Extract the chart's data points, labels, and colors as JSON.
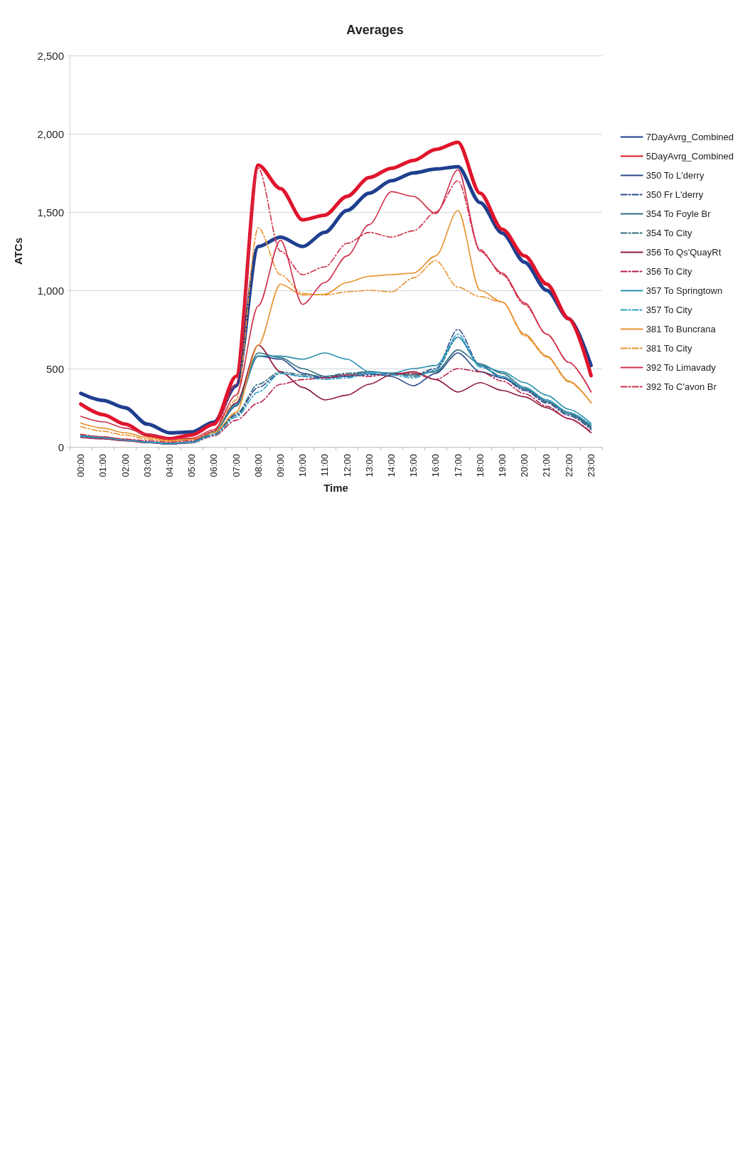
{
  "chart_data": {
    "type": "line",
    "title": "Averages",
    "xlabel": "Time",
    "ylabel": "ATCs",
    "categories": [
      "00:00",
      "01:00",
      "02:00",
      "03:00",
      "04:00",
      "05:00",
      "06:00",
      "07:00",
      "08:00",
      "09:00",
      "10:00",
      "11:00",
      "12:00",
      "13:00",
      "14:00",
      "15:00",
      "16:00",
      "17:00",
      "18:00",
      "19:00",
      "20:00",
      "21:00",
      "22:00",
      "23:00"
    ],
    "ylim": [
      0,
      2500
    ],
    "yticks": [
      {
        "value": 0,
        "label": "0"
      },
      {
        "value": 500,
        "label": "500"
      },
      {
        "value": 1000,
        "label": "1,000"
      },
      {
        "value": 1500,
        "label": "1,500"
      },
      {
        "value": 2000,
        "label": "2,000"
      },
      {
        "value": 2500,
        "label": "2,500"
      }
    ],
    "grid": "y",
    "legend": "right",
    "marker": "none",
    "series": [
      {
        "name": "7DayAvrg_Combined",
        "color": "#1f3f8f",
        "values": [
          342,
          297,
          250,
          145,
          90,
          95,
          158,
          390,
          1280,
          1340,
          1280,
          1370,
          1510,
          1620,
          1700,
          1750,
          1775,
          1790,
          1560,
          1365,
          1180,
          1000,
          818,
          520
        ]
      },
      {
        "name": "5DayAvrg_Combined",
        "color": "#e0142c",
        "values": [
          273,
          206,
          145,
          76,
          52,
          76,
          145,
          450,
          1800,
          1650,
          1450,
          1480,
          1600,
          1720,
          1780,
          1830,
          1900,
          1945,
          1620,
          1390,
          1220,
          1040,
          818,
          455
        ]
      },
      {
        "name": "350 To L'derry",
        "color": "#2b4a8c",
        "values": [
          75,
          62,
          47,
          32,
          22,
          32,
          95,
          260,
          580,
          560,
          470,
          440,
          450,
          470,
          450,
          390,
          470,
          600,
          480,
          440,
          370,
          290,
          210,
          120
        ]
      },
      {
        "name": "350 Fr L'derry",
        "color": "#2b4a8c",
        "line_style": "dashed",
        "values": [
          70,
          58,
          44,
          30,
          20,
          28,
          80,
          200,
          380,
          470,
          450,
          440,
          450,
          460,
          470,
          460,
          500,
          750,
          520,
          440,
          360,
          280,
          200,
          110
        ]
      },
      {
        "name": "354 To Foyle Br",
        "color": "#2f6f7e",
        "values": [
          68,
          58,
          43,
          29,
          20,
          30,
          95,
          270,
          600,
          570,
          500,
          450,
          460,
          480,
          470,
          460,
          480,
          620,
          530,
          470,
          380,
          300,
          220,
          130
        ]
      },
      {
        "name": "354 To City",
        "color": "#2f6f7e",
        "line_style": "dashed",
        "values": [
          65,
          55,
          42,
          28,
          18,
          28,
          80,
          210,
          400,
          480,
          460,
          450,
          470,
          480,
          470,
          450,
          490,
          700,
          520,
          450,
          370,
          290,
          210,
          120
        ]
      },
      {
        "name": "356 To Qs'QuayRt",
        "color": "#8b1a3a",
        "values": [
          62,
          52,
          40,
          27,
          18,
          28,
          95,
          280,
          650,
          480,
          380,
          300,
          330,
          400,
          460,
          480,
          430,
          350,
          410,
          360,
          320,
          250,
          180,
          90
        ]
      },
      {
        "name": "356 To City",
        "color": "#b8204a",
        "line_style": "dashed",
        "values": [
          60,
          50,
          38,
          26,
          17,
          25,
          70,
          170,
          280,
          400,
          430,
          440,
          460,
          450,
          470,
          470,
          430,
          500,
          480,
          420,
          340,
          260,
          180,
          95
        ]
      },
      {
        "name": "357 To Springtown",
        "color": "#2a90b0",
        "values": [
          72,
          62,
          46,
          31,
          21,
          31,
          95,
          270,
          580,
          580,
          560,
          600,
          560,
          480,
          470,
          500,
          520,
          700,
          520,
          480,
          410,
          330,
          240,
          150
        ]
      },
      {
        "name": "357 To City",
        "color": "#2aa0c8",
        "line_style": "dashed",
        "values": [
          66,
          56,
          42,
          28,
          18,
          27,
          75,
          190,
          350,
          470,
          450,
          430,
          440,
          470,
          460,
          440,
          490,
          720,
          510,
          450,
          380,
          300,
          220,
          140
        ]
      },
      {
        "name": "381 To Buncrana",
        "color": "#e8922e",
        "values": [
          152,
          120,
          90,
          60,
          40,
          50,
          90,
          220,
          650,
          1040,
          970,
          975,
          1050,
          1090,
          1100,
          1110,
          1220,
          1510,
          1000,
          925,
          720,
          580,
          420,
          282
        ]
      },
      {
        "name": "381 To City",
        "color": "#e8922e",
        "line_style": "dashed",
        "values": [
          130,
          100,
          75,
          50,
          35,
          45,
          100,
          300,
          1400,
          1100,
          980,
          970,
          990,
          1000,
          990,
          1080,
          1190,
          1020,
          960,
          925,
          710,
          575,
          415,
          280
        ]
      },
      {
        "name": "392 To Limavady",
        "color": "#d0304a",
        "values": [
          195,
          160,
          120,
          80,
          50,
          55,
          110,
          330,
          900,
          1320,
          910,
          1050,
          1220,
          1420,
          1630,
          1600,
          1490,
          1770,
          1250,
          1110,
          920,
          720,
          540,
          351
        ]
      },
      {
        "name": "392 To C'avon Br",
        "color": "#d0304a",
        "line_style": "dashed",
        "values": [
          80,
          65,
          50,
          40,
          30,
          40,
          100,
          400,
          1780,
          1250,
          1100,
          1150,
          1300,
          1370,
          1340,
          1380,
          1500,
          1700,
          1260,
          1100,
          910,
          720,
          540,
          351
        ]
      }
    ]
  }
}
